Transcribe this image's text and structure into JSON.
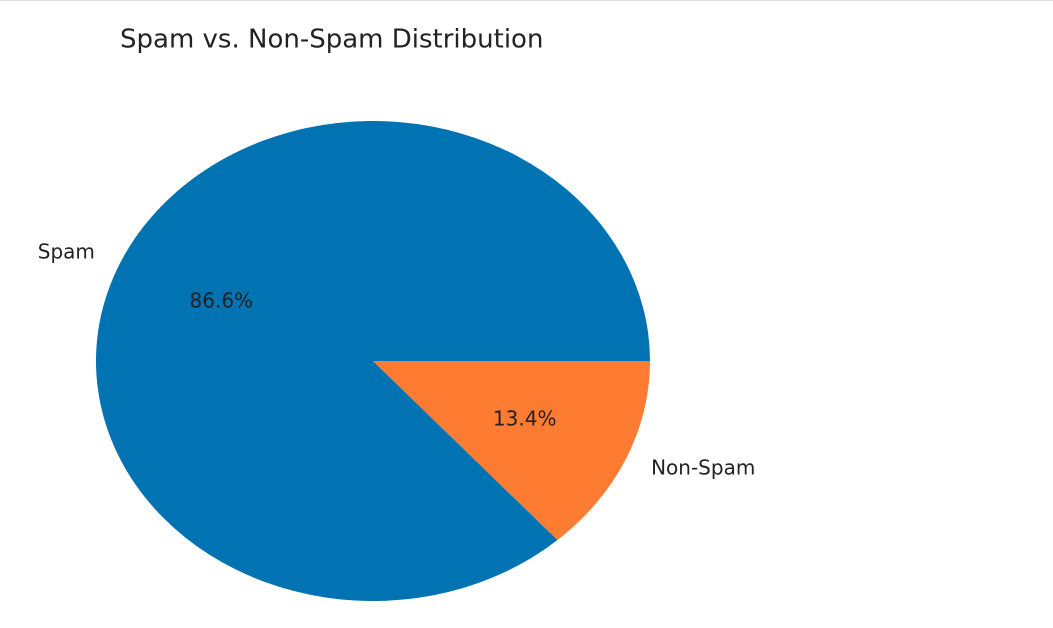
{
  "chart_data": {
    "type": "pie",
    "title": "Spam vs. Non-Spam Distribution",
    "categories": [
      "Spam",
      "Non-Spam"
    ],
    "values": [
      86.6,
      13.4
    ],
    "value_labels": [
      "86.6%",
      "13.4%"
    ],
    "colors": [
      "#0173b2",
      "#fd7c31"
    ]
  }
}
